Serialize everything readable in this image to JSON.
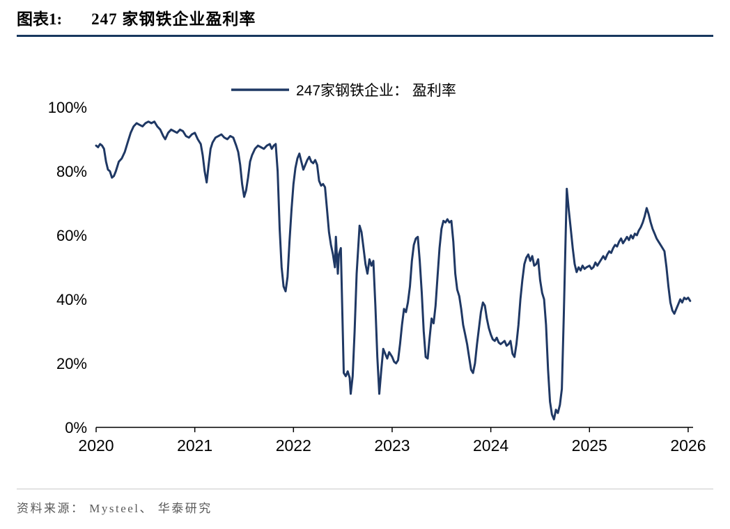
{
  "header": {
    "figure_label": "图表1:",
    "title": "247 家钢铁企业盈利率",
    "rule_color": "#17375E"
  },
  "footer": {
    "source": "资料来源： Mysteel、 华泰研究"
  },
  "chart_data": {
    "type": "line",
    "title": "247 家钢铁企业盈利率",
    "xlabel": "",
    "ylabel": "",
    "xlim": [
      2020,
      2026.05
    ],
    "ylim": [
      0,
      100
    ],
    "grid": false,
    "legend_position": "top-center",
    "line_color": "#1F3864",
    "axis_color": "#000000",
    "x_ticks": [
      2020,
      2021,
      2022,
      2023,
      2024,
      2025,
      2026
    ],
    "x_tick_labels": [
      "2020",
      "2021",
      "2022",
      "2023",
      "2024",
      "2025",
      "2026"
    ],
    "y_ticks": [
      0,
      20,
      40,
      60,
      80,
      100
    ],
    "y_tick_labels": [
      "0%",
      "20%",
      "40%",
      "60%",
      "80%",
      "100%"
    ],
    "series": [
      {
        "name": "247家钢铁企业： 盈利率",
        "color": "#1F3864",
        "unit": "percent",
        "points": [
          [
            2020.0,
            88
          ],
          [
            2020.02,
            87.5
          ],
          [
            2020.04,
            88.5
          ],
          [
            2020.06,
            88
          ],
          [
            2020.08,
            87
          ],
          [
            2020.1,
            83
          ],
          [
            2020.12,
            80.5
          ],
          [
            2020.14,
            80
          ],
          [
            2020.16,
            78
          ],
          [
            2020.18,
            78.5
          ],
          [
            2020.2,
            80
          ],
          [
            2020.23,
            83
          ],
          [
            2020.26,
            84
          ],
          [
            2020.29,
            86
          ],
          [
            2020.32,
            89
          ],
          [
            2020.35,
            92
          ],
          [
            2020.38,
            94
          ],
          [
            2020.41,
            95
          ],
          [
            2020.44,
            94.5
          ],
          [
            2020.47,
            94
          ],
          [
            2020.5,
            95
          ],
          [
            2020.53,
            95.5
          ],
          [
            2020.56,
            95
          ],
          [
            2020.59,
            95.5
          ],
          [
            2020.62,
            94
          ],
          [
            2020.65,
            93
          ],
          [
            2020.68,
            91
          ],
          [
            2020.7,
            90
          ],
          [
            2020.73,
            92
          ],
          [
            2020.76,
            93
          ],
          [
            2020.79,
            92.5
          ],
          [
            2020.82,
            92
          ],
          [
            2020.85,
            93
          ],
          [
            2020.88,
            92.5
          ],
          [
            2020.91,
            91
          ],
          [
            2020.94,
            90.5
          ],
          [
            2020.97,
            91.5
          ],
          [
            2021.0,
            92
          ],
          [
            2021.03,
            90
          ],
          [
            2021.06,
            88.5
          ],
          [
            2021.08,
            85
          ],
          [
            2021.1,
            80
          ],
          [
            2021.12,
            76.5
          ],
          [
            2021.14,
            82
          ],
          [
            2021.16,
            87
          ],
          [
            2021.18,
            89
          ],
          [
            2021.21,
            90.5
          ],
          [
            2021.24,
            91
          ],
          [
            2021.27,
            91.5
          ],
          [
            2021.3,
            90.5
          ],
          [
            2021.33,
            90
          ],
          [
            2021.36,
            91
          ],
          [
            2021.39,
            90.5
          ],
          [
            2021.42,
            88
          ],
          [
            2021.44,
            86
          ],
          [
            2021.46,
            82
          ],
          [
            2021.48,
            76
          ],
          [
            2021.5,
            72
          ],
          [
            2021.52,
            74
          ],
          [
            2021.54,
            78
          ],
          [
            2021.56,
            83
          ],
          [
            2021.58,
            85
          ],
          [
            2021.61,
            87
          ],
          [
            2021.64,
            88
          ],
          [
            2021.67,
            87.5
          ],
          [
            2021.7,
            87
          ],
          [
            2021.73,
            88
          ],
          [
            2021.76,
            88.5
          ],
          [
            2021.78,
            87
          ],
          [
            2021.8,
            88
          ],
          [
            2021.82,
            88.5
          ],
          [
            2021.84,
            80
          ],
          [
            2021.86,
            62
          ],
          [
            2021.88,
            50
          ],
          [
            2021.9,
            44
          ],
          [
            2021.92,
            42.5
          ],
          [
            2021.94,
            47
          ],
          [
            2021.96,
            58
          ],
          [
            2021.98,
            68
          ],
          [
            2022.0,
            76
          ],
          [
            2022.02,
            81
          ],
          [
            2022.04,
            84
          ],
          [
            2022.06,
            85.5
          ],
          [
            2022.08,
            83
          ],
          [
            2022.1,
            80.5
          ],
          [
            2022.12,
            82
          ],
          [
            2022.14,
            83.5
          ],
          [
            2022.16,
            84.5
          ],
          [
            2022.18,
            83
          ],
          [
            2022.2,
            82.5
          ],
          [
            2022.22,
            83.5
          ],
          [
            2022.24,
            82
          ],
          [
            2022.26,
            77
          ],
          [
            2022.28,
            75.5
          ],
          [
            2022.3,
            76
          ],
          [
            2022.32,
            75
          ],
          [
            2022.34,
            68
          ],
          [
            2022.36,
            61
          ],
          [
            2022.38,
            57
          ],
          [
            2022.4,
            54
          ],
          [
            2022.42,
            50
          ],
          [
            2022.43,
            59.5
          ],
          [
            2022.45,
            48
          ],
          [
            2022.46,
            54
          ],
          [
            2022.48,
            56
          ],
          [
            2022.5,
            30
          ],
          [
            2022.51,
            17
          ],
          [
            2022.53,
            16
          ],
          [
            2022.55,
            17.5
          ],
          [
            2022.57,
            15.5
          ],
          [
            2022.58,
            10.5
          ],
          [
            2022.6,
            16
          ],
          [
            2022.62,
            30
          ],
          [
            2022.64,
            48
          ],
          [
            2022.66,
            58
          ],
          [
            2022.67,
            63
          ],
          [
            2022.69,
            61
          ],
          [
            2022.71,
            56
          ],
          [
            2022.73,
            51
          ],
          [
            2022.75,
            48
          ],
          [
            2022.77,
            52.5
          ],
          [
            2022.79,
            50.5
          ],
          [
            2022.81,
            52
          ],
          [
            2022.83,
            38
          ],
          [
            2022.85,
            22
          ],
          [
            2022.87,
            10.5
          ],
          [
            2022.89,
            18
          ],
          [
            2022.91,
            24.5
          ],
          [
            2022.93,
            23
          ],
          [
            2022.95,
            21.5
          ],
          [
            2022.97,
            23.5
          ],
          [
            2023.0,
            22
          ],
          [
            2023.02,
            20.5
          ],
          [
            2023.04,
            20
          ],
          [
            2023.06,
            21
          ],
          [
            2023.08,
            26
          ],
          [
            2023.1,
            32
          ],
          [
            2023.12,
            37
          ],
          [
            2023.14,
            36
          ],
          [
            2023.16,
            39
          ],
          [
            2023.18,
            44
          ],
          [
            2023.2,
            52
          ],
          [
            2023.22,
            57
          ],
          [
            2023.24,
            59
          ],
          [
            2023.26,
            59.5
          ],
          [
            2023.28,
            52
          ],
          [
            2023.3,
            42
          ],
          [
            2023.32,
            30
          ],
          [
            2023.34,
            22
          ],
          [
            2023.36,
            21.5
          ],
          [
            2023.38,
            28
          ],
          [
            2023.4,
            34
          ],
          [
            2023.42,
            32.5
          ],
          [
            2023.44,
            38
          ],
          [
            2023.46,
            47
          ],
          [
            2023.48,
            56
          ],
          [
            2023.5,
            62
          ],
          [
            2023.52,
            64.5
          ],
          [
            2023.54,
            64
          ],
          [
            2023.56,
            65
          ],
          [
            2023.58,
            64
          ],
          [
            2023.6,
            64.5
          ],
          [
            2023.62,
            58
          ],
          [
            2023.64,
            48
          ],
          [
            2023.66,
            43
          ],
          [
            2023.68,
            41
          ],
          [
            2023.7,
            37
          ],
          [
            2023.72,
            32
          ],
          [
            2023.74,
            29
          ],
          [
            2023.76,
            26
          ],
          [
            2023.78,
            22
          ],
          [
            2023.8,
            18
          ],
          [
            2023.82,
            17
          ],
          [
            2023.84,
            20
          ],
          [
            2023.86,
            26
          ],
          [
            2023.88,
            31
          ],
          [
            2023.9,
            36
          ],
          [
            2023.92,
            39
          ],
          [
            2023.94,
            38
          ],
          [
            2023.96,
            34
          ],
          [
            2023.98,
            31
          ],
          [
            2024.0,
            29
          ],
          [
            2024.02,
            27.5
          ],
          [
            2024.04,
            27
          ],
          [
            2024.06,
            28
          ],
          [
            2024.08,
            26.5
          ],
          [
            2024.1,
            26
          ],
          [
            2024.12,
            26.5
          ],
          [
            2024.14,
            27
          ],
          [
            2024.16,
            25.5
          ],
          [
            2024.18,
            26
          ],
          [
            2024.2,
            27
          ],
          [
            2024.22,
            23
          ],
          [
            2024.24,
            22
          ],
          [
            2024.26,
            26
          ],
          [
            2024.28,
            32
          ],
          [
            2024.3,
            40
          ],
          [
            2024.32,
            46
          ],
          [
            2024.34,
            51
          ],
          [
            2024.36,
            53
          ],
          [
            2024.38,
            54
          ],
          [
            2024.4,
            52
          ],
          [
            2024.42,
            53.5
          ],
          [
            2024.44,
            50.5
          ],
          [
            2024.46,
            51
          ],
          [
            2024.48,
            52.5
          ],
          [
            2024.5,
            46
          ],
          [
            2024.52,
            42
          ],
          [
            2024.54,
            40
          ],
          [
            2024.56,
            32
          ],
          [
            2024.58,
            18
          ],
          [
            2024.6,
            8
          ],
          [
            2024.62,
            4
          ],
          [
            2024.64,
            2.5
          ],
          [
            2024.66,
            5.5
          ],
          [
            2024.68,
            4.5
          ],
          [
            2024.7,
            7
          ],
          [
            2024.72,
            12
          ],
          [
            2024.74,
            35
          ],
          [
            2024.76,
            62
          ],
          [
            2024.77,
            74.5
          ],
          [
            2024.79,
            68
          ],
          [
            2024.81,
            62
          ],
          [
            2024.83,
            56
          ],
          [
            2024.85,
            51
          ],
          [
            2024.87,
            48.5
          ],
          [
            2024.89,
            50
          ],
          [
            2024.91,
            49
          ],
          [
            2024.93,
            50.5
          ],
          [
            2024.95,
            49.5
          ],
          [
            2024.97,
            50
          ],
          [
            2025.0,
            50.5
          ],
          [
            2025.02,
            49.5
          ],
          [
            2025.04,
            50
          ],
          [
            2025.06,
            51.5
          ],
          [
            2025.08,
            50.5
          ],
          [
            2025.1,
            51.5
          ],
          [
            2025.12,
            52.5
          ],
          [
            2025.14,
            53.5
          ],
          [
            2025.16,
            52.5
          ],
          [
            2025.18,
            54
          ],
          [
            2025.2,
            55
          ],
          [
            2025.22,
            54.5
          ],
          [
            2025.24,
            56
          ],
          [
            2025.26,
            57
          ],
          [
            2025.28,
            56.5
          ],
          [
            2025.3,
            58
          ],
          [
            2025.32,
            59
          ],
          [
            2025.34,
            57.5
          ],
          [
            2025.36,
            58.5
          ],
          [
            2025.38,
            59.5
          ],
          [
            2025.4,
            58.5
          ],
          [
            2025.42,
            60
          ],
          [
            2025.44,
            59
          ],
          [
            2025.46,
            60.5
          ],
          [
            2025.48,
            60
          ],
          [
            2025.5,
            61.5
          ],
          [
            2025.52,
            62.5
          ],
          [
            2025.54,
            64
          ],
          [
            2025.56,
            66
          ],
          [
            2025.58,
            68.5
          ],
          [
            2025.6,
            66.5
          ],
          [
            2025.62,
            64
          ],
          [
            2025.64,
            62
          ],
          [
            2025.66,
            60.5
          ],
          [
            2025.68,
            59
          ],
          [
            2025.7,
            58
          ],
          [
            2025.72,
            57
          ],
          [
            2025.74,
            56
          ],
          [
            2025.76,
            55
          ],
          [
            2025.78,
            50
          ],
          [
            2025.8,
            44
          ],
          [
            2025.82,
            39
          ],
          [
            2025.84,
            36.5
          ],
          [
            2025.86,
            35.5
          ],
          [
            2025.88,
            37
          ],
          [
            2025.9,
            38.5
          ],
          [
            2025.92,
            40
          ],
          [
            2025.94,
            39
          ],
          [
            2025.96,
            40.5
          ],
          [
            2025.98,
            40
          ],
          [
            2026.0,
            40.5
          ],
          [
            2026.02,
            39.5
          ]
        ]
      }
    ]
  }
}
